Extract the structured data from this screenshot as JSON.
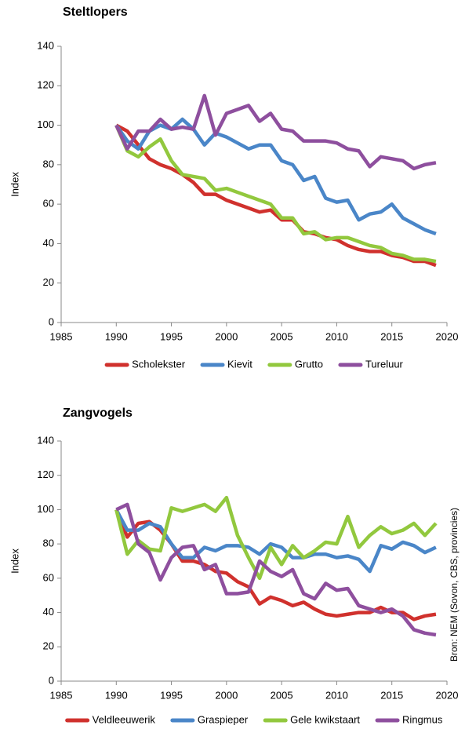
{
  "chart_data": [
    {
      "type": "line",
      "title": "Steltlopers",
      "y_label": "Index",
      "x": [
        1990,
        1991,
        1992,
        1993,
        1994,
        1995,
        1996,
        1997,
        1998,
        1999,
        2000,
        2001,
        2002,
        2003,
        2004,
        2005,
        2006,
        2007,
        2008,
        2009,
        2010,
        2011,
        2012,
        2013,
        2014,
        2015,
        2016,
        2017,
        2018,
        2019
      ],
      "xlim": [
        1985,
        2020
      ],
      "xticks": [
        1985,
        1990,
        1995,
        2000,
        2005,
        2010,
        2015,
        2020
      ],
      "ylim": [
        0,
        140
      ],
      "yticks": [
        0,
        20,
        40,
        60,
        80,
        100,
        120,
        140
      ],
      "legend": "bottom",
      "series": [
        {
          "name": "Scholekster",
          "color": "#d0312d",
          "values": [
            100,
            97,
            90,
            83,
            80,
            78,
            75,
            71,
            65,
            65,
            62,
            60,
            58,
            56,
            57,
            52,
            52,
            46,
            45,
            43,
            42,
            39,
            37,
            36,
            36,
            34,
            33,
            31,
            31,
            29
          ]
        },
        {
          "name": "Kievit",
          "color": "#4a86c8",
          "values": [
            100,
            92,
            88,
            97,
            100,
            98,
            103,
            98,
            90,
            96,
            94,
            91,
            88,
            90,
            90,
            82,
            80,
            72,
            74,
            63,
            61,
            62,
            52,
            55,
            56,
            60,
            53,
            50,
            47,
            45
          ]
        },
        {
          "name": "Grutto",
          "color": "#92c83e",
          "values": [
            100,
            87,
            84,
            89,
            93,
            82,
            75,
            74,
            73,
            67,
            68,
            66,
            64,
            62,
            60,
            53,
            53,
            45,
            46,
            42,
            43,
            43,
            41,
            39,
            38,
            35,
            34,
            32,
            32,
            31
          ]
        },
        {
          "name": "Tureluur",
          "color": "#8e4f9e",
          "values": [
            100,
            88,
            97,
            97,
            103,
            98,
            99,
            98,
            115,
            95,
            106,
            108,
            110,
            102,
            106,
            98,
            97,
            92,
            92,
            92,
            91,
            88,
            87,
            79,
            84,
            83,
            82,
            78,
            80,
            81
          ]
        }
      ]
    },
    {
      "type": "line",
      "title": "Zangvogels",
      "y_label": "Index",
      "source": "Bron: NEM (Sovon, CBS, provincies)",
      "x": [
        1990,
        1991,
        1992,
        1993,
        1994,
        1995,
        1996,
        1997,
        1998,
        1999,
        2000,
        2001,
        2002,
        2003,
        2004,
        2005,
        2006,
        2007,
        2008,
        2009,
        2010,
        2011,
        2012,
        2013,
        2014,
        2015,
        2016,
        2017,
        2018,
        2019
      ],
      "xlim": [
        1985,
        2020
      ],
      "xticks": [
        1985,
        1990,
        1995,
        2000,
        2005,
        2010,
        2015,
        2020
      ],
      "ylim": [
        0,
        140
      ],
      "yticks": [
        0,
        20,
        40,
        60,
        80,
        100,
        120,
        140
      ],
      "legend": "bottom",
      "series": [
        {
          "name": "Veldleeuwerik",
          "color": "#d0312d",
          "values": [
            100,
            84,
            92,
            93,
            88,
            80,
            70,
            70,
            68,
            64,
            63,
            58,
            55,
            45,
            49,
            47,
            44,
            46,
            42,
            39,
            38,
            39,
            40,
            40,
            43,
            40,
            40,
            36,
            38,
            39
          ]
        },
        {
          "name": "Graspieper",
          "color": "#4a86c8",
          "values": [
            100,
            88,
            88,
            92,
            90,
            80,
            72,
            72,
            78,
            76,
            79,
            79,
            78,
            74,
            80,
            78,
            72,
            72,
            74,
            74,
            72,
            73,
            71,
            64,
            79,
            77,
            81,
            79,
            75,
            78
          ]
        },
        {
          "name": "Gele kwikstaart",
          "color": "#92c83e",
          "values": [
            100,
            74,
            82,
            77,
            76,
            101,
            99,
            101,
            103,
            99,
            107,
            85,
            72,
            60,
            78,
            68,
            79,
            72,
            76,
            81,
            80,
            96,
            78,
            85,
            90,
            86,
            88,
            92,
            85,
            92
          ]
        },
        {
          "name": "Ringmus",
          "color": "#8e4f9e",
          "values": [
            100,
            103,
            80,
            75,
            59,
            72,
            78,
            79,
            65,
            68,
            51,
            51,
            52,
            70,
            64,
            61,
            65,
            51,
            48,
            57,
            53,
            54,
            44,
            42,
            40,
            42,
            38,
            30,
            28,
            27
          ]
        }
      ]
    }
  ]
}
